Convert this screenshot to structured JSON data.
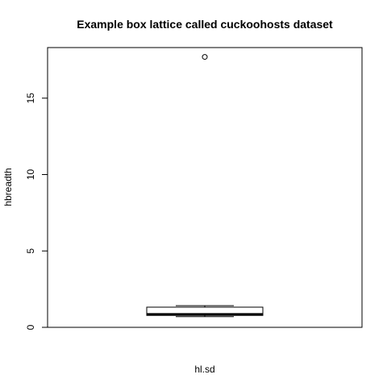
{
  "chart_data": {
    "type": "box",
    "title": "Example box lattice called cuckoohosts dataset",
    "xlabel": "hl.sd",
    "ylabel": "hbreadth",
    "ylim": [
      0,
      17.7
    ],
    "yticks": [
      "0",
      "5",
      "10",
      "15"
    ],
    "box": {
      "whisker_low": 0.7,
      "q1": 0.78,
      "median": 0.85,
      "q3": 1.32,
      "whisker_high": 1.42,
      "outliers": [
        17.7
      ]
    },
    "grid": false
  }
}
